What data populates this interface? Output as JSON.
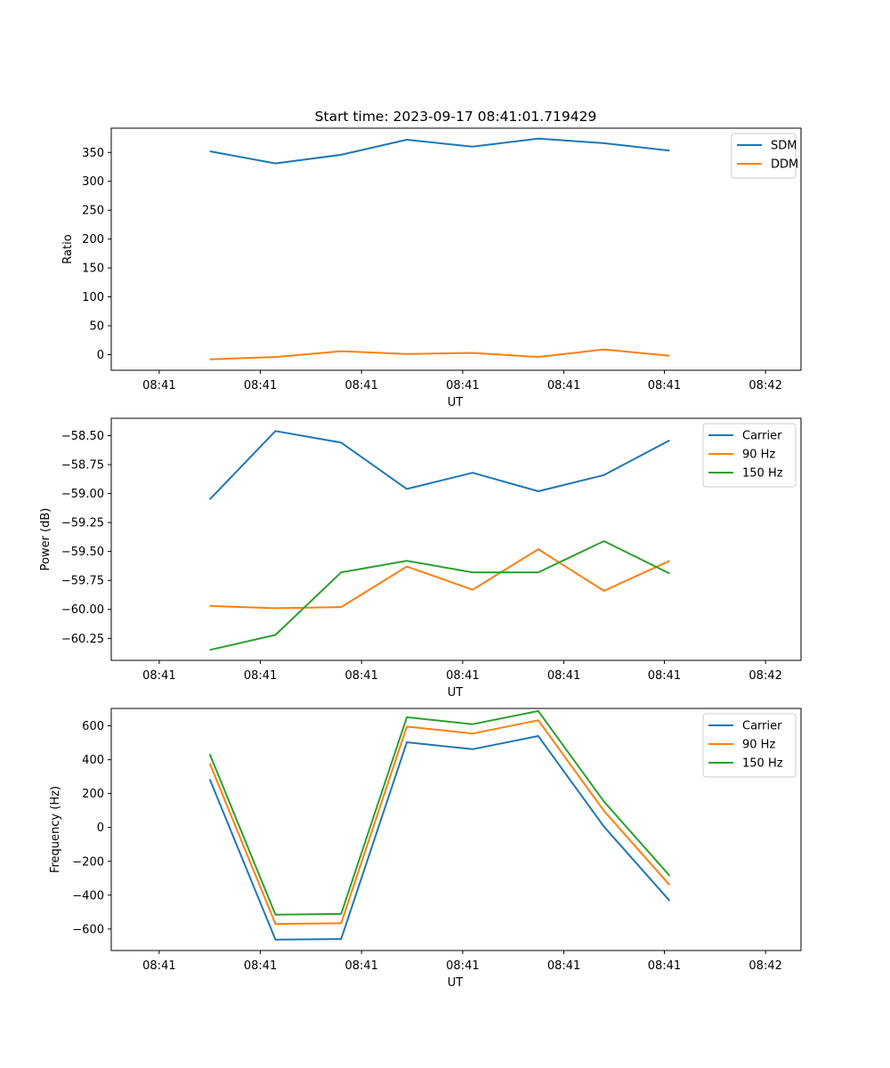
{
  "title": "Start time: 2023-09-17 08:41:01.719429",
  "colors": {
    "blue": "#1f77b4",
    "orange": "#ff7f0e",
    "green": "#2ca02c"
  },
  "chart_data": [
    {
      "type": "line",
      "ylabel": "Ratio",
      "xlabel": "UT",
      "xtick_labels": [
        "08:41",
        "08:41",
        "08:41",
        "08:41",
        "08:41",
        "08:41",
        "08:42"
      ],
      "xticks": [
        -0.77,
        0.77,
        2.31,
        3.85,
        5.39,
        6.92,
        8.46
      ],
      "xlim": [
        -1.5,
        9.0
      ],
      "ylim": [
        -27,
        392
      ],
      "yticks": [
        0,
        50,
        100,
        150,
        200,
        250,
        300,
        350
      ],
      "ytick_labels": [
        "0",
        "50",
        "100",
        "150",
        "200",
        "250",
        "300",
        "350"
      ],
      "legend": "upper right",
      "x": [
        0,
        1,
        2,
        3,
        4,
        5,
        6,
        7
      ],
      "series": [
        {
          "name": "SDM",
          "color": "#1f77b4",
          "values": [
            352,
            331,
            346,
            372,
            360,
            374,
            366,
            353
          ]
        },
        {
          "name": "DDM",
          "color": "#ff7f0e",
          "values": [
            -8,
            -4,
            6,
            1,
            3,
            -4,
            9,
            -2
          ]
        }
      ]
    },
    {
      "type": "line",
      "ylabel": "Power (dB)",
      "xlabel": "UT",
      "xtick_labels": [
        "08:41",
        "08:41",
        "08:41",
        "08:41",
        "08:41",
        "08:41",
        "08:42"
      ],
      "xticks": [
        -0.77,
        0.77,
        2.31,
        3.85,
        5.39,
        6.92,
        8.46
      ],
      "xlim": [
        -1.5,
        9.0
      ],
      "ylim": [
        -60.44,
        -58.35
      ],
      "yticks": [
        -60.25,
        -60.0,
        -59.75,
        -59.5,
        -59.25,
        -59.0,
        -58.75,
        -58.5
      ],
      "ytick_labels": [
        "−60.25",
        "−60.00",
        "−59.75",
        "−59.50",
        "−59.25",
        "−59.00",
        "−58.75",
        "−58.50"
      ],
      "legend": "upper right",
      "x": [
        0,
        1,
        2,
        3,
        4,
        5,
        6,
        7
      ],
      "series": [
        {
          "name": "Carrier",
          "color": "#1f77b4",
          "values": [
            -59.05,
            -58.46,
            -58.56,
            -58.96,
            -58.82,
            -58.98,
            -58.84,
            -58.54
          ]
        },
        {
          "name": "90 Hz",
          "color": "#ff7f0e",
          "values": [
            -59.97,
            -59.99,
            -59.98,
            -59.63,
            -59.83,
            -59.48,
            -59.84,
            -59.58
          ]
        },
        {
          "name": "150 Hz",
          "color": "#2ca02c",
          "values": [
            -60.35,
            -60.22,
            -59.68,
            -59.58,
            -59.68,
            -59.68,
            -59.41,
            -59.69
          ]
        }
      ]
    },
    {
      "type": "line",
      "ylabel": "Frequency (Hz)",
      "xlabel": "UT",
      "xtick_labels": [
        "08:41",
        "08:41",
        "08:41",
        "08:41",
        "08:41",
        "08:41",
        "08:42"
      ],
      "xticks": [
        -0.77,
        0.77,
        2.31,
        3.85,
        5.39,
        6.92,
        8.46
      ],
      "xlim": [
        -1.5,
        9.0
      ],
      "ylim": [
        -727,
        703
      ],
      "yticks": [
        -600,
        -400,
        -200,
        0,
        200,
        400,
        600
      ],
      "ytick_labels": [
        "−600",
        "−400",
        "−200",
        "0",
        "200",
        "400",
        "600"
      ],
      "legend": "upper right",
      "x": [
        0,
        1,
        2,
        3,
        4,
        5,
        6,
        7
      ],
      "series": [
        {
          "name": "Carrier",
          "color": "#1f77b4",
          "values": [
            285,
            -663,
            -659,
            503,
            462,
            540,
            5,
            -433
          ]
        },
        {
          "name": "90 Hz",
          "color": "#ff7f0e",
          "values": [
            378,
            -570,
            -566,
            596,
            555,
            633,
            98,
            -340
          ]
        },
        {
          "name": "150 Hz",
          "color": "#2ca02c",
          "values": [
            433,
            -515,
            -511,
            651,
            610,
            688,
            153,
            -285
          ]
        }
      ]
    }
  ]
}
